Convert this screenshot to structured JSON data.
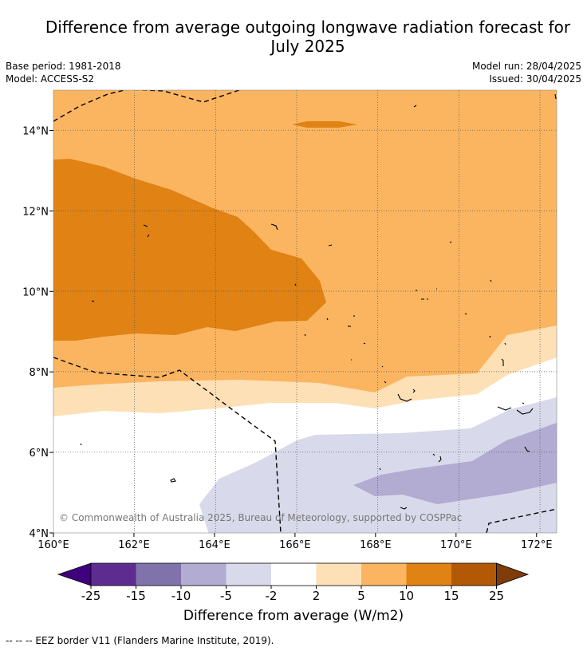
{
  "title": {
    "line1": "Difference from average outgoing longwave radiation forecast for",
    "line2": "July 2025"
  },
  "meta": {
    "base_period": "Base period: 1981-2018",
    "model": "Model: ACCESS-S2",
    "model_run": "Model run: 28/04/2025",
    "issued": "Issued: 30/04/2025"
  },
  "map": {
    "x_axis": {
      "min": 160,
      "max": 172.5,
      "ticks": [
        "160°E",
        "162°E",
        "164°E",
        "166°E",
        "168°E",
        "170°E",
        "172°E"
      ],
      "tick_values": [
        160,
        162,
        164,
        166,
        168,
        170,
        172
      ]
    },
    "y_axis": {
      "min": 4,
      "max": 15,
      "ticks": [
        "4°N",
        "6°N",
        "8°N",
        "10°N",
        "12°N",
        "14°N"
      ],
      "tick_values": [
        4,
        6,
        8,
        10,
        12,
        14
      ]
    },
    "grid": "dotted",
    "copyright": "© Commonwealth of Australia 2025, Bureau of Meteorology, supported by COSPPac"
  },
  "colorbar": {
    "labels": [
      "-25",
      "-15",
      "-10",
      "-5",
      "-2",
      "2",
      "5",
      "10",
      "15",
      "25"
    ],
    "colors": [
      "#3f007d",
      "#5e2c91",
      "#8073ac",
      "#b2abd2",
      "#d8daeb",
      "#ffffff",
      "#fee0b6",
      "#fbb560",
      "#e08214",
      "#b35806",
      "#7f3b08"
    ],
    "title": "Difference from average (W/m2)"
  },
  "footnote": "-- -- -- EEZ border V11 (Flanders Marine Institute, 2019)."
}
